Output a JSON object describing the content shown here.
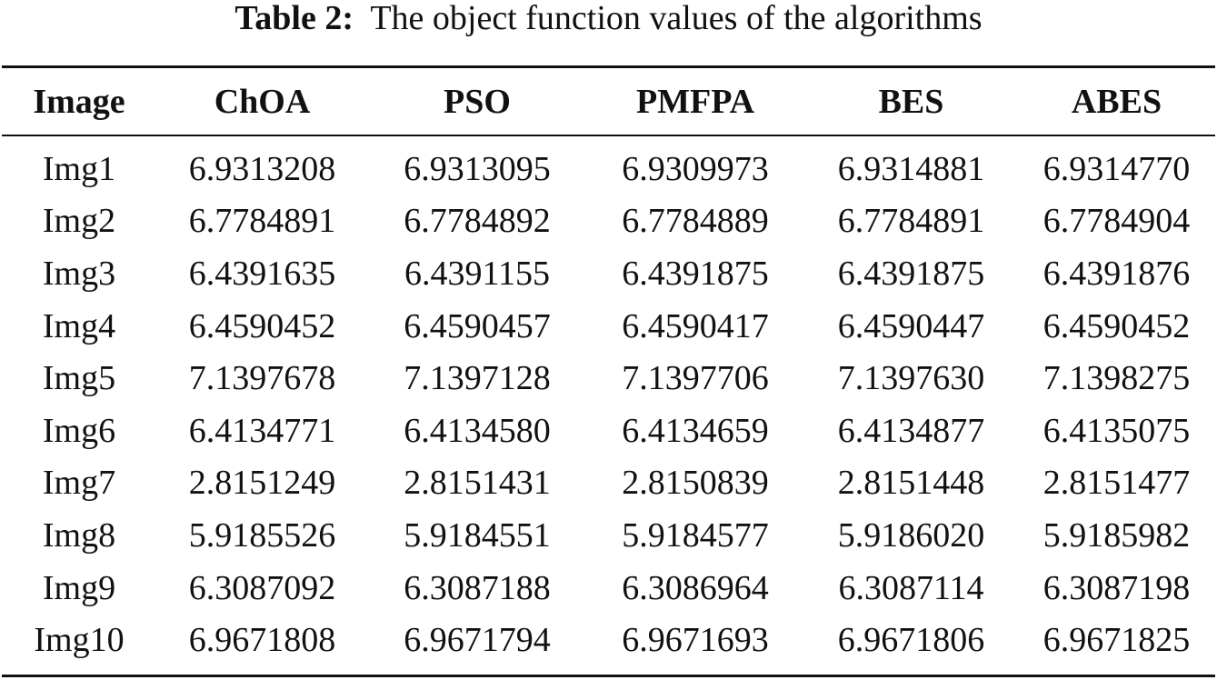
{
  "caption": {
    "label": "Table 2:",
    "text": "The object function values of the algorithms"
  },
  "table": {
    "headers": [
      "Image",
      "ChOA",
      "PSO",
      "PMFPA",
      "BES",
      "ABES"
    ],
    "rows": [
      [
        "Img1",
        "6.9313208",
        "6.9313095",
        "6.9309973",
        "6.9314881",
        "6.9314770"
      ],
      [
        "Img2",
        "6.7784891",
        "6.7784892",
        "6.7784889",
        "6.7784891",
        "6.7784904"
      ],
      [
        "Img3",
        "6.4391635",
        "6.4391155",
        "6.4391875",
        "6.4391875",
        "6.4391876"
      ],
      [
        "Img4",
        "6.4590452",
        "6.4590457",
        "6.4590417",
        "6.4590447",
        "6.4590452"
      ],
      [
        "Img5",
        "7.1397678",
        "7.1397128",
        "7.1397706",
        "7.1397630",
        "7.1398275"
      ],
      [
        "Img6",
        "6.4134771",
        "6.4134580",
        "6.4134659",
        "6.4134877",
        "6.4135075"
      ],
      [
        "Img7",
        "2.8151249",
        "2.8151431",
        "2.8150839",
        "2.8151448",
        "2.8151477"
      ],
      [
        "Img8",
        "5.9185526",
        "5.9184551",
        "5.9184577",
        "5.9186020",
        "5.9185982"
      ],
      [
        "Img9",
        "6.3087092",
        "6.3087188",
        "6.3086964",
        "6.3087114",
        "6.3087198"
      ],
      [
        "Img10",
        "6.9671808",
        "6.9671794",
        "6.9671693",
        "6.9671806",
        "6.9671825"
      ]
    ]
  }
}
